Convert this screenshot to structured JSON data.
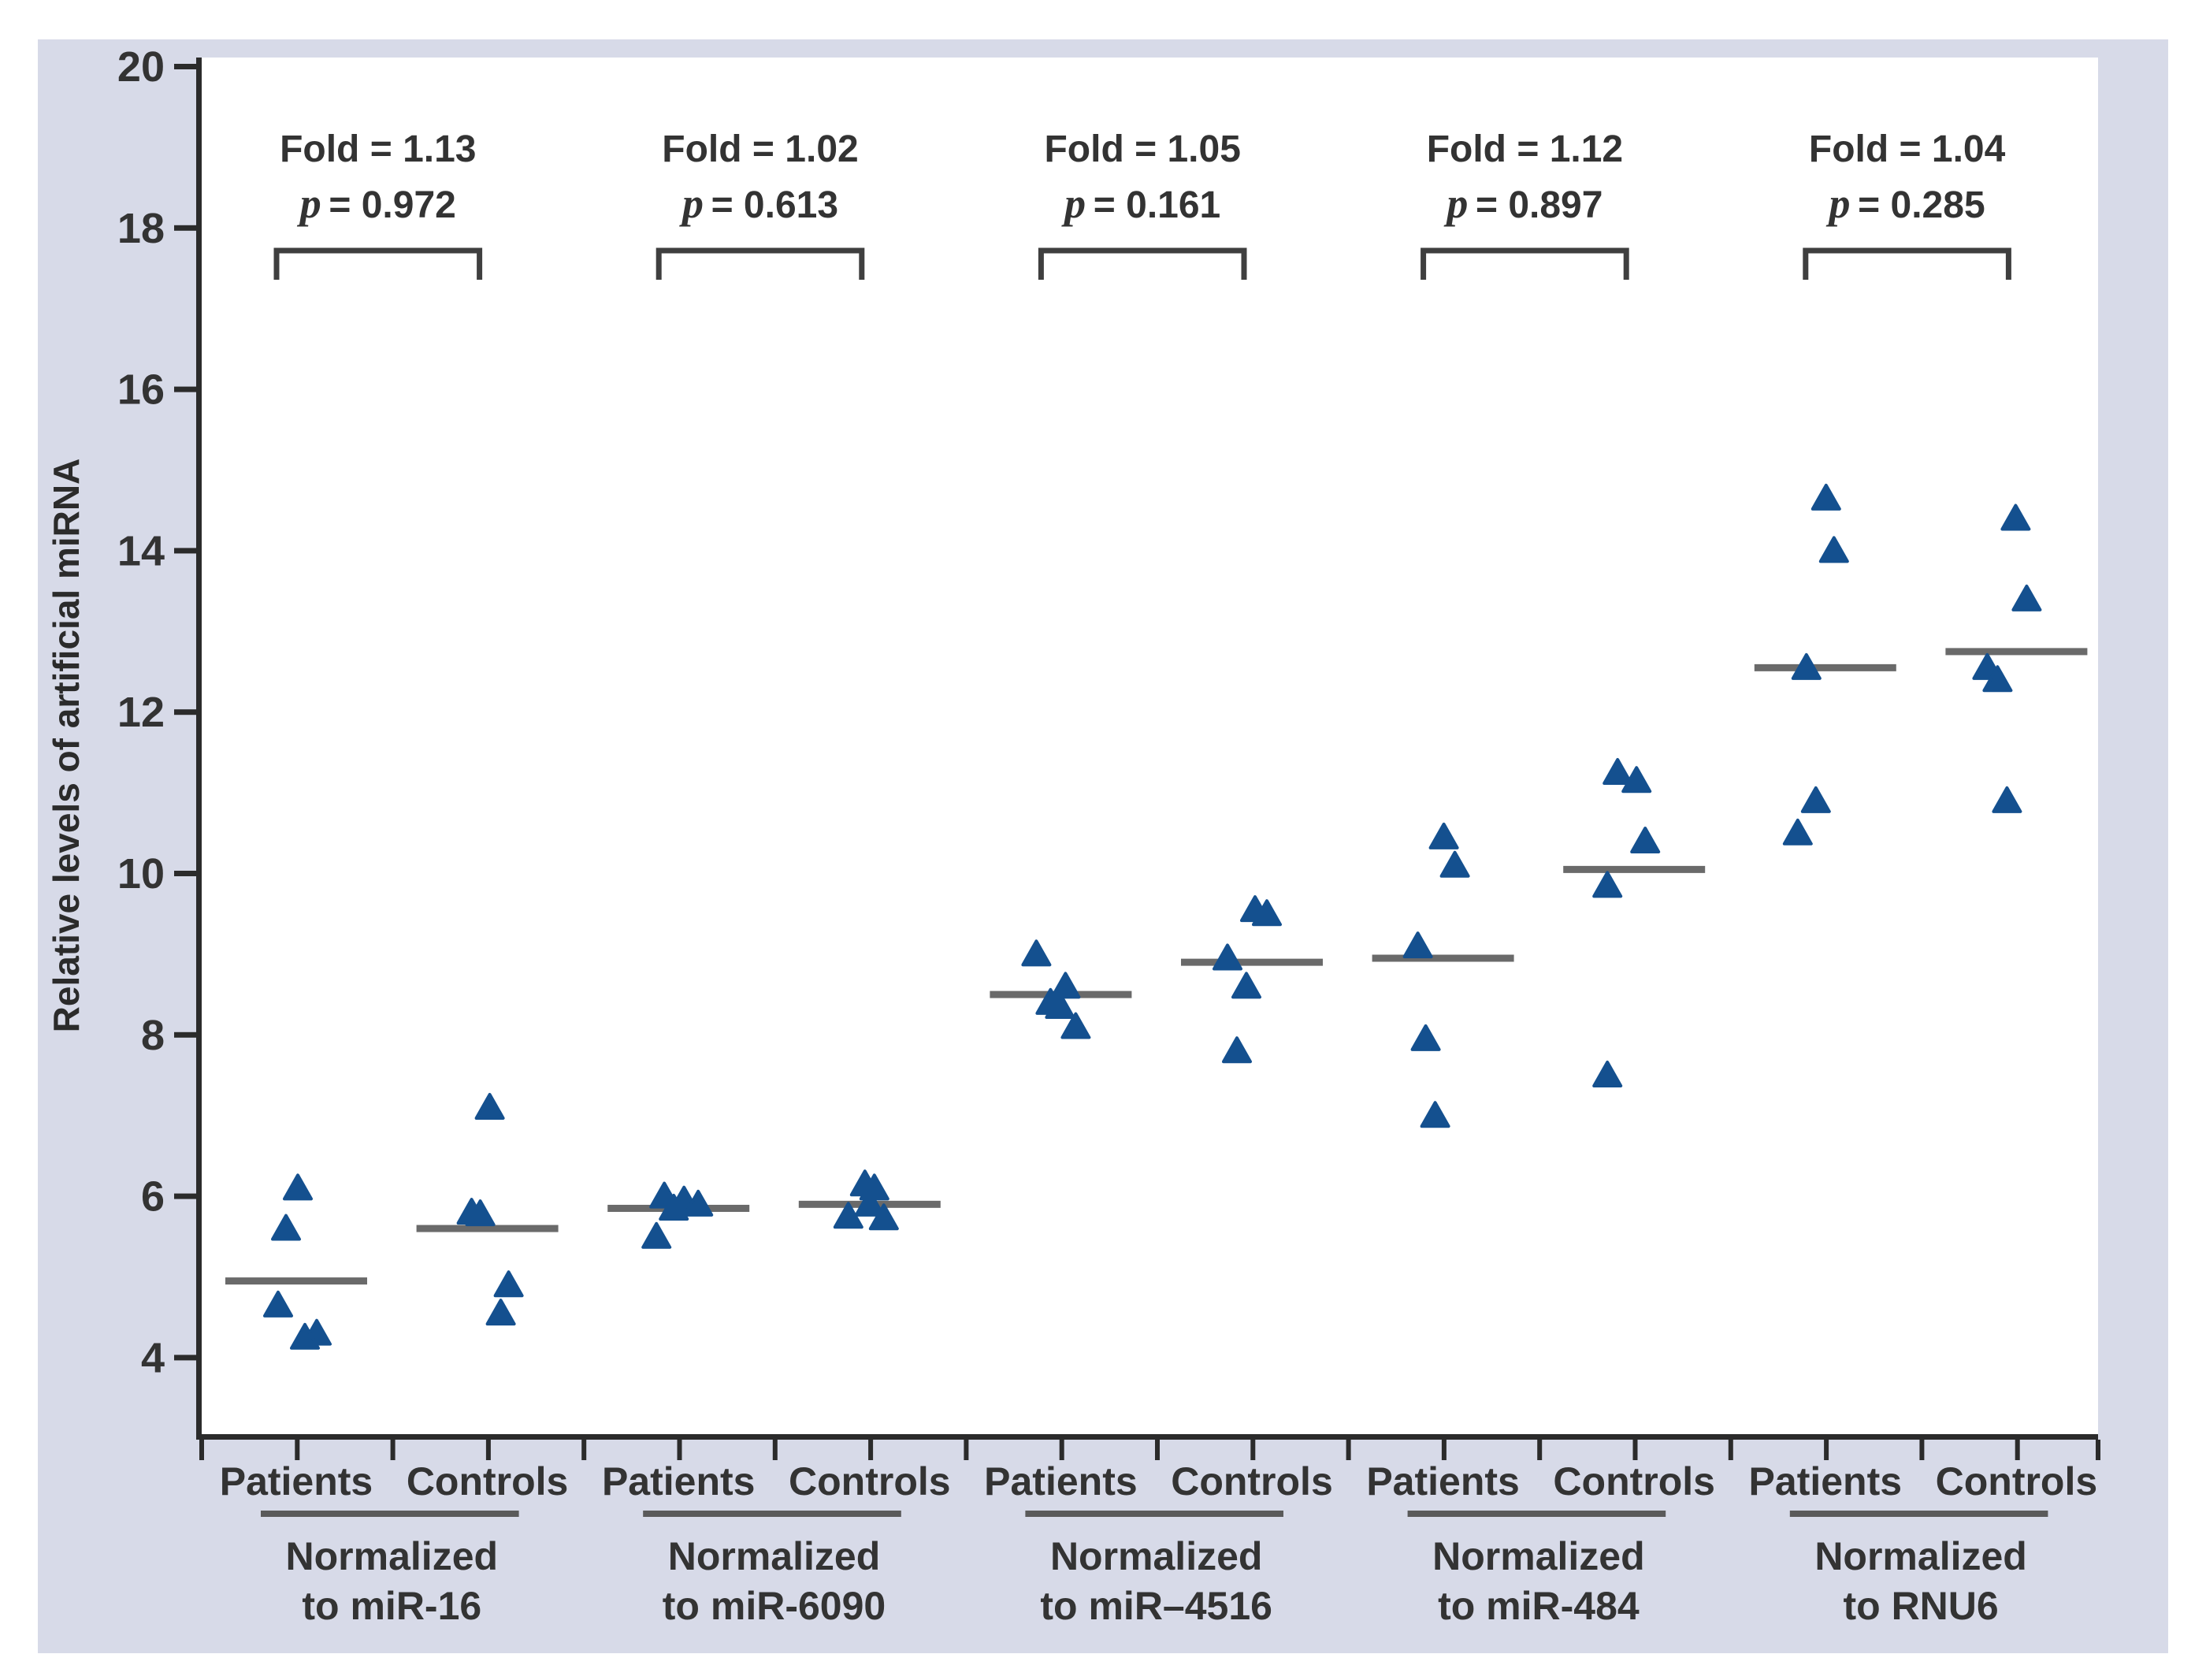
{
  "figure": {
    "colors": {
      "panel_bg": "#d7dae8",
      "plot_bg": "#ffffff",
      "axis": "#2b2b2b",
      "tick_text": "#333333",
      "marker": "#14508f",
      "mean_line": "#6a6a6a",
      "bracket": "#3f3f3f",
      "annotation_text": "#333333"
    },
    "marker_shape": "filled-triangle-up"
  },
  "chart_data": {
    "type": "scatter",
    "title": "",
    "xlabel": "",
    "ylabel": "Relative levels of artificial miRNA",
    "ylim": [
      3,
      20
    ],
    "y_ticks": [
      4,
      6,
      8,
      10,
      12,
      14,
      16,
      18,
      20
    ],
    "grid": "off",
    "legend": "none",
    "pair_labels": [
      "Patients",
      "Controls"
    ],
    "fold_prefix": "Fold = ",
    "p_symbol": "p",
    "groups": [
      {
        "normalizer": "miR-16",
        "label_line1": "Normalized",
        "label_line2": "to miR-16",
        "fold": "1.13",
        "p": "0.972",
        "fold_label": "Fold = 1.13",
        "p_label": "= 0.972",
        "patients": {
          "label": "Patients",
          "values": [
            6.1,
            5.6,
            4.65,
            4.3,
            4.25
          ],
          "mean": 4.95,
          "x_offsets": [
            2,
            -13,
            -23,
            26,
            11
          ]
        },
        "controls": {
          "label": "Controls",
          "values": [
            7.1,
            5.8,
            5.78,
            4.9,
            4.55
          ],
          "mean": 5.6,
          "x_offsets": [
            3,
            -20,
            -9,
            27,
            17
          ]
        }
      },
      {
        "normalizer": "miR-6090",
        "label_line1": "Normalized",
        "label_line2": "to miR-6090",
        "fold": "1.02",
        "p": "0.613",
        "fold_label": "Fold = 1.02",
        "p_label": "= 0.613",
        "patients": {
          "label": "Patients",
          "values": [
            6.0,
            5.95,
            5.9,
            5.85,
            5.5
          ],
          "mean": 5.85,
          "x_offsets": [
            -18,
            7,
            25,
            -6,
            -28
          ]
        },
        "controls": {
          "label": "Controls",
          "values": [
            6.15,
            6.1,
            5.9,
            5.75,
            5.73
          ],
          "mean": 5.9,
          "x_offsets": [
            -6,
            6,
            0,
            -27,
            18
          ]
        }
      },
      {
        "normalizer": "miR-4516",
        "label_line1": "Normalized",
        "label_line2": "to miR–4516",
        "fold": "1.05",
        "p": "0.161",
        "fold_label": "Fold = 1.05",
        "p_label": "= 0.161",
        "patients": {
          "label": "Patients",
          "values": [
            9.0,
            8.6,
            8.4,
            8.35,
            8.1
          ],
          "mean": 8.5,
          "x_offsets": [
            -31,
            6,
            -13,
            -1,
            19
          ]
        },
        "controls": {
          "label": "Controls",
          "values": [
            9.55,
            9.5,
            8.95,
            8.6,
            7.8
          ],
          "mean": 8.9,
          "x_offsets": [
            4,
            19,
            -31,
            -7,
            -19
          ]
        }
      },
      {
        "normalizer": "miR-484",
        "label_line1": "Normalized",
        "label_line2": "to miR-484",
        "fold": "1.12",
        "p": "0.897",
        "fold_label": "Fold = 1.12",
        "p_label": "= 0.897",
        "patients": {
          "label": "Patients",
          "values": [
            10.45,
            10.1,
            9.1,
            7.95,
            7.0
          ],
          "mean": 8.95,
          "x_offsets": [
            1,
            15,
            -32,
            -22,
            -10
          ]
        },
        "controls": {
          "label": "Controls",
          "values": [
            11.25,
            11.15,
            10.4,
            9.85,
            7.5
          ],
          "mean": 10.05,
          "x_offsets": [
            -21,
            3,
            14,
            -34,
            -34
          ]
        }
      },
      {
        "normalizer": "RNU6",
        "label_line1": "Normalized",
        "label_line2": "to RNU6",
        "fold": "1.04",
        "p": "0.285",
        "fold_label": "Fold = 1.04",
        "p_label": "= 0.285",
        "patients": {
          "label": "Patients",
          "values": [
            14.65,
            14.0,
            12.55,
            10.9,
            10.5
          ],
          "mean": 12.55,
          "x_offsets": [
            1,
            11,
            -24,
            -12,
            -35
          ]
        },
        "controls": {
          "label": "Controls",
          "values": [
            14.4,
            13.4,
            12.55,
            12.4,
            10.9
          ],
          "mean": 12.75,
          "x_offsets": [
            -1,
            13,
            -37,
            -24,
            -12
          ]
        }
      }
    ]
  }
}
